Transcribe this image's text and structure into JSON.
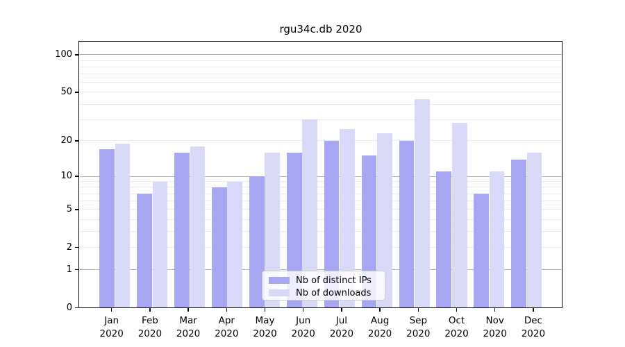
{
  "chart_data": {
    "type": "bar",
    "title": "rgu34c.db 2020",
    "categories": [
      "Jan",
      "Feb",
      "Mar",
      "Apr",
      "May",
      "Jun",
      "Jul",
      "Aug",
      "Sep",
      "Oct",
      "Nov",
      "Dec"
    ],
    "x_sublabel": "2020",
    "series": [
      {
        "name": "Nb of distinct IPs",
        "color": "#a6a6f2",
        "values": [
          17,
          7,
          16,
          8,
          10,
          16,
          20,
          15,
          20,
          11,
          7,
          14
        ]
      },
      {
        "name": "Nb of downloads",
        "color": "#d9d9f8",
        "values": [
          19,
          9,
          18,
          9,
          16,
          30,
          25,
          23,
          44,
          28,
          11,
          16
        ]
      }
    ],
    "scale": "log1p",
    "ylim": [
      0,
      130
    ],
    "yticks": [
      0,
      1,
      2,
      5,
      10,
      20,
      50,
      100
    ],
    "major_gridlines": [
      1,
      10,
      100
    ],
    "minor_gridlines": [
      2,
      3,
      4,
      5,
      6,
      7,
      8,
      9,
      20,
      30,
      40,
      50,
      60,
      70,
      80,
      90
    ],
    "grid": "on",
    "legend_position": "lower center",
    "axis_color": "#000000",
    "major_grid_color": "#b0b0b0",
    "minor_grid_color": "#ebebeb"
  }
}
